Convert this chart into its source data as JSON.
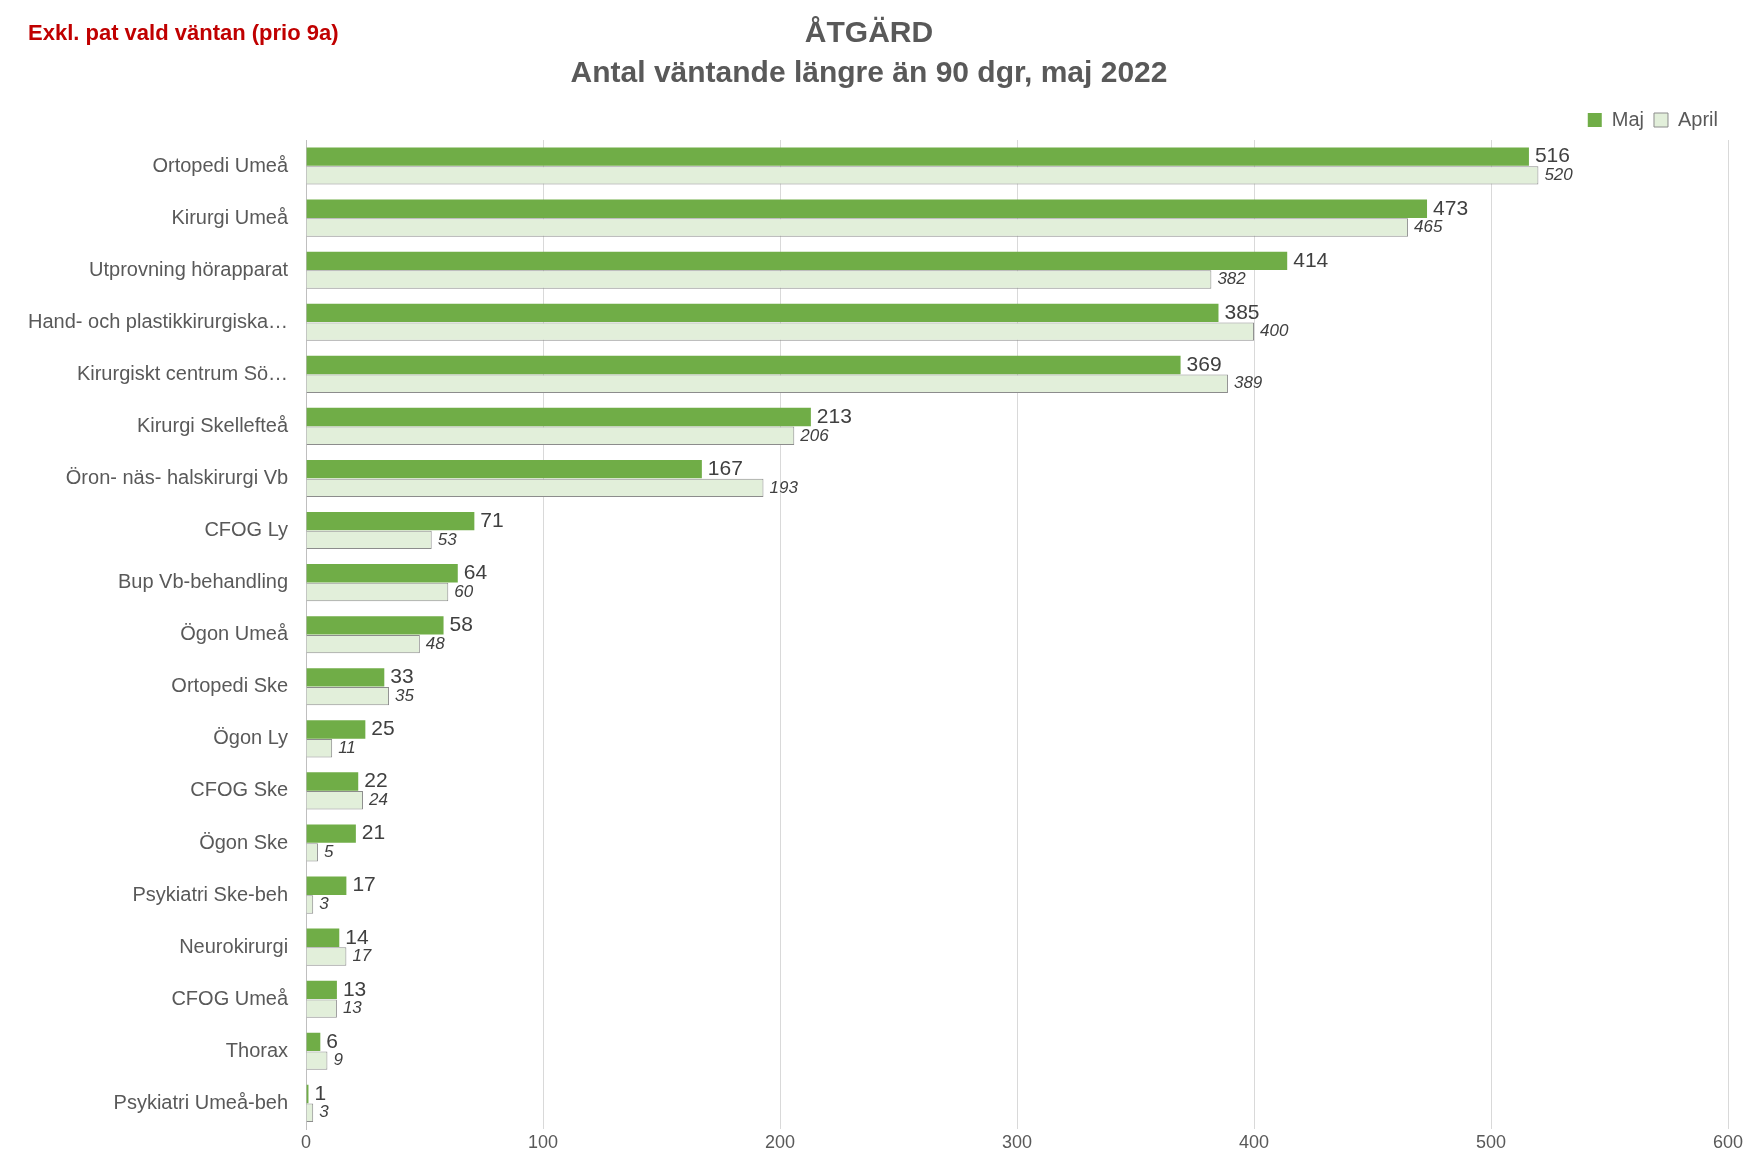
{
  "chart_data": {
    "type": "bar",
    "orientation": "horizontal",
    "title": "ÅTGÄRD",
    "subtitle": "Antal väntande längre än 90 dgr, maj 2022",
    "annotations": [
      "Exkl. pat vald väntan (prio 9a)"
    ],
    "categories": [
      "Ortopedi Umeå",
      "Kirurgi Umeå",
      "Utprovning hörapparat",
      "Hand- och plastikkirurgiska…",
      "Kirurgiskt centrum Sö…",
      "Kirurgi Skellefteå",
      "Öron- näs- halskirurgi Vb",
      "CFOG Ly",
      "Bup Vb-behandling",
      "Ögon Umeå",
      "Ortopedi Ske",
      "Ögon Ly",
      "CFOG Ske",
      "Ögon Ske",
      "Psykiatri Ske-beh",
      "Neurokirurgi",
      "CFOG Umeå",
      "Thorax",
      "Psykiatri Umeå-beh"
    ],
    "series": [
      {
        "name": "Maj",
        "color": "#70ad47",
        "values": [
          516,
          473,
          414,
          385,
          369,
          213,
          167,
          71,
          64,
          58,
          33,
          25,
          22,
          21,
          17,
          14,
          13,
          6,
          1
        ]
      },
      {
        "name": "April",
        "color": "#e2efda",
        "values": [
          520,
          465,
          382,
          400,
          389,
          206,
          193,
          53,
          60,
          48,
          35,
          11,
          24,
          5,
          3,
          17,
          13,
          9,
          3
        ]
      }
    ],
    "xlim": [
      0,
      600
    ],
    "xticks": [
      0,
      100,
      200,
      300,
      400,
      500,
      600
    ],
    "grid": "x",
    "legend": "top right",
    "data_labels": true
  }
}
